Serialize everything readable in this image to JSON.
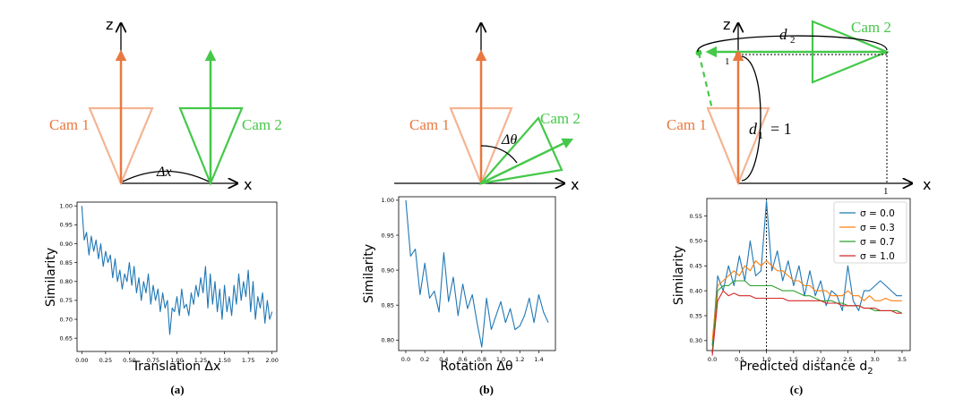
{
  "colors": {
    "cam1": "#E9783F",
    "cam1_light": "#F4B493",
    "cam2": "#45C84A",
    "series": "#1F77B4",
    "s00": "#1F77B4",
    "s03": "#FF7F0E",
    "s07": "#2CA02C",
    "s10": "#D62728"
  },
  "diagrams": {
    "a": {
      "z": "z",
      "x": "x",
      "cam1": "Cam 1",
      "cam2": "Cam 2",
      "delta": "Δx"
    },
    "b": {
      "x": "x",
      "cam1": "Cam 1",
      "cam2": "Cam 2",
      "delta": "Δθ"
    },
    "c": {
      "x": "x",
      "z": "z",
      "cam1": "Cam 1",
      "cam2": "Cam 2",
      "d2": "d",
      "d2_sub": "2",
      "d1": "d",
      "d1_sub": "1",
      "d1_eq": "= 1",
      "tick_top": "1",
      "tick_x": "1"
    }
  },
  "panel_labels": [
    "(a)",
    "(b)",
    "(c)"
  ],
  "chart_data": [
    {
      "type": "line",
      "title": "",
      "xlabel": "Translation Δx",
      "ylabel": "Similarity",
      "xlim": [
        -0.05,
        2.05
      ],
      "ylim": [
        0.615,
        1.01
      ],
      "xticks": [
        0.0,
        0.25,
        0.5,
        0.75,
        1.0,
        1.25,
        1.5,
        1.75,
        2.0
      ],
      "xtick_labels": [
        "0.00",
        "0.25",
        "0.50",
        "0.75",
        "1.00",
        "1.25",
        "1.50",
        "1.75",
        "2.00"
      ],
      "yticks": [
        0.65,
        0.7,
        0.75,
        0.8,
        0.85,
        0.9,
        0.95,
        1.0
      ],
      "ytick_labels": [
        "0.65",
        "0.70",
        "0.75",
        "0.80",
        "0.85",
        "0.90",
        "0.95",
        "1.00"
      ],
      "series": [
        {
          "name": "similarity",
          "x": [
            0.0,
            0.025,
            0.05,
            0.075,
            0.1,
            0.125,
            0.15,
            0.175,
            0.2,
            0.225,
            0.25,
            0.275,
            0.3,
            0.325,
            0.35,
            0.375,
            0.4,
            0.425,
            0.45,
            0.475,
            0.5,
            0.525,
            0.55,
            0.575,
            0.6,
            0.625,
            0.65,
            0.675,
            0.7,
            0.725,
            0.75,
            0.775,
            0.8,
            0.825,
            0.85,
            0.875,
            0.9,
            0.925,
            0.95,
            0.975,
            1.0,
            1.025,
            1.05,
            1.075,
            1.1,
            1.125,
            1.15,
            1.175,
            1.2,
            1.225,
            1.25,
            1.275,
            1.3,
            1.325,
            1.35,
            1.375,
            1.4,
            1.425,
            1.45,
            1.475,
            1.5,
            1.525,
            1.55,
            1.575,
            1.6,
            1.625,
            1.65,
            1.675,
            1.7,
            1.725,
            1.75,
            1.775,
            1.8,
            1.825,
            1.85,
            1.875,
            1.9,
            1.925,
            1.95,
            1.975,
            2.0
          ],
          "values": [
            1.0,
            0.91,
            0.93,
            0.87,
            0.92,
            0.88,
            0.91,
            0.86,
            0.9,
            0.84,
            0.88,
            0.85,
            0.87,
            0.81,
            0.86,
            0.8,
            0.83,
            0.78,
            0.82,
            0.8,
            0.85,
            0.79,
            0.84,
            0.77,
            0.81,
            0.75,
            0.8,
            0.77,
            0.82,
            0.74,
            0.79,
            0.75,
            0.78,
            0.72,
            0.77,
            0.73,
            0.75,
            0.66,
            0.73,
            0.72,
            0.76,
            0.71,
            0.78,
            0.73,
            0.74,
            0.71,
            0.77,
            0.74,
            0.79,
            0.76,
            0.81,
            0.77,
            0.84,
            0.73,
            0.82,
            0.74,
            0.8,
            0.72,
            0.78,
            0.7,
            0.79,
            0.72,
            0.76,
            0.71,
            0.79,
            0.74,
            0.82,
            0.75,
            0.8,
            0.76,
            0.83,
            0.72,
            0.8,
            0.7,
            0.76,
            0.73,
            0.77,
            0.69,
            0.75,
            0.7,
            0.72
          ]
        }
      ]
    },
    {
      "type": "line",
      "title": "",
      "xlabel": "Rotation Δθ",
      "ylabel": "Similarity",
      "xlim": [
        -0.075,
        1.575
      ],
      "ylim": [
        0.785,
        1.005
      ],
      "xticks": [
        0.0,
        0.2,
        0.4,
        0.6,
        0.8,
        1.0,
        1.2,
        1.4
      ],
      "xtick_labels": [
        "0.0",
        "0.2",
        "0.4",
        "0.6",
        "0.8",
        "1.0",
        "1.2",
        "1.4"
      ],
      "yticks": [
        0.8,
        0.85,
        0.9,
        0.95,
        1.0
      ],
      "ytick_labels": [
        "0.80",
        "0.85",
        "0.90",
        "0.95",
        "1.00"
      ],
      "series": [
        {
          "name": "similarity",
          "x": [
            0.0,
            0.05,
            0.1,
            0.15,
            0.2,
            0.25,
            0.3,
            0.35,
            0.4,
            0.45,
            0.5,
            0.55,
            0.6,
            0.65,
            0.7,
            0.75,
            0.8,
            0.85,
            0.9,
            0.95,
            1.0,
            1.05,
            1.1,
            1.15,
            1.2,
            1.25,
            1.3,
            1.35,
            1.4,
            1.45,
            1.5
          ],
          "values": [
            1.0,
            0.92,
            0.93,
            0.865,
            0.91,
            0.86,
            0.87,
            0.84,
            0.925,
            0.855,
            0.89,
            0.835,
            0.88,
            0.845,
            0.865,
            0.825,
            0.79,
            0.86,
            0.815,
            0.835,
            0.855,
            0.825,
            0.845,
            0.815,
            0.82,
            0.835,
            0.86,
            0.825,
            0.865,
            0.84,
            0.825
          ]
        }
      ]
    },
    {
      "type": "line",
      "title": "",
      "xlabel": "Predicted distance d",
      "xlabel_sub": "2",
      "ylabel": "Similarity",
      "xlim": [
        -0.1,
        3.65
      ],
      "ylim": [
        0.28,
        0.585
      ],
      "xticks": [
        0.0,
        0.5,
        1.0,
        1.5,
        2.0,
        2.5,
        3.0,
        3.5
      ],
      "xtick_labels": [
        "0.0",
        "0.5",
        "1.0",
        "1.5",
        "2.0",
        "2.5",
        "3.0",
        "3.5"
      ],
      "yticks": [
        0.3,
        0.35,
        0.4,
        0.45,
        0.5,
        0.55
      ],
      "ytick_labels": [
        "0.30",
        "0.35",
        "0.40",
        "0.45",
        "0.50",
        "0.55"
      ],
      "vline_x": 1.0,
      "legend_placement": "top-right",
      "series": [
        {
          "name": "σ = 0.0",
          "legend_label": "σ = 0.0",
          "x": [
            0.0,
            0.1,
            0.2,
            0.3,
            0.4,
            0.5,
            0.6,
            0.7,
            0.8,
            0.9,
            1.0,
            1.1,
            1.2,
            1.3,
            1.4,
            1.5,
            1.6,
            1.7,
            1.8,
            1.9,
            2.0,
            2.1,
            2.2,
            2.3,
            2.4,
            2.5,
            2.6,
            2.7,
            2.8,
            2.9,
            3.0,
            3.1,
            3.2,
            3.3,
            3.4,
            3.5
          ],
          "values": [
            0.29,
            0.43,
            0.4,
            0.45,
            0.41,
            0.47,
            0.42,
            0.5,
            0.43,
            0.44,
            0.58,
            0.44,
            0.48,
            0.42,
            0.46,
            0.41,
            0.45,
            0.39,
            0.44,
            0.39,
            0.42,
            0.37,
            0.4,
            0.39,
            0.36,
            0.45,
            0.38,
            0.36,
            0.4,
            0.4,
            0.41,
            0.42,
            0.41,
            0.4,
            0.39,
            0.39
          ]
        },
        {
          "name": "σ = 0.3",
          "legend_label": "σ = 0.3",
          "x": [
            0.0,
            0.1,
            0.2,
            0.3,
            0.4,
            0.5,
            0.6,
            0.7,
            0.8,
            0.9,
            1.0,
            1.1,
            1.2,
            1.3,
            1.4,
            1.5,
            1.6,
            1.7,
            1.8,
            1.9,
            2.0,
            2.1,
            2.2,
            2.3,
            2.4,
            2.5,
            2.6,
            2.7,
            2.8,
            2.9,
            3.0,
            3.1,
            3.2,
            3.3,
            3.4,
            3.5
          ],
          "values": [
            0.3,
            0.41,
            0.42,
            0.43,
            0.44,
            0.43,
            0.45,
            0.44,
            0.46,
            0.45,
            0.46,
            0.45,
            0.44,
            0.44,
            0.43,
            0.42,
            0.42,
            0.41,
            0.41,
            0.4,
            0.4,
            0.4,
            0.39,
            0.39,
            0.39,
            0.4,
            0.39,
            0.39,
            0.38,
            0.39,
            0.38,
            0.38,
            0.385,
            0.38,
            0.38,
            0.38
          ]
        },
        {
          "name": "σ = 0.7",
          "legend_label": "σ = 0.7",
          "x": [
            0.0,
            0.1,
            0.2,
            0.3,
            0.4,
            0.5,
            0.6,
            0.7,
            0.8,
            0.9,
            1.0,
            1.1,
            1.2,
            1.3,
            1.4,
            1.5,
            1.6,
            1.7,
            1.8,
            1.9,
            2.0,
            2.1,
            2.2,
            2.3,
            2.4,
            2.5,
            2.6,
            2.7,
            2.8,
            2.9,
            3.0,
            3.1,
            3.2,
            3.3,
            3.4,
            3.5
          ],
          "values": [
            0.28,
            0.4,
            0.41,
            0.41,
            0.42,
            0.42,
            0.42,
            0.41,
            0.41,
            0.41,
            0.41,
            0.41,
            0.405,
            0.4,
            0.4,
            0.4,
            0.395,
            0.39,
            0.39,
            0.385,
            0.38,
            0.38,
            0.38,
            0.375,
            0.375,
            0.37,
            0.37,
            0.37,
            0.365,
            0.365,
            0.36,
            0.36,
            0.36,
            0.36,
            0.36,
            0.355
          ]
        },
        {
          "name": "σ = 1.0",
          "legend_label": "σ = 1.0",
          "x": [
            0.0,
            0.1,
            0.2,
            0.3,
            0.4,
            0.5,
            0.6,
            0.7,
            0.8,
            0.9,
            1.0,
            1.1,
            1.2,
            1.3,
            1.4,
            1.5,
            1.6,
            1.7,
            1.8,
            1.9,
            2.0,
            2.1,
            2.2,
            2.3,
            2.4,
            2.5,
            2.6,
            2.7,
            2.8,
            2.9,
            3.0,
            3.1,
            3.2,
            3.3,
            3.4,
            3.5
          ],
          "values": [
            0.27,
            0.38,
            0.4,
            0.39,
            0.395,
            0.39,
            0.39,
            0.39,
            0.385,
            0.385,
            0.385,
            0.385,
            0.385,
            0.385,
            0.38,
            0.38,
            0.38,
            0.38,
            0.38,
            0.38,
            0.38,
            0.375,
            0.375,
            0.375,
            0.37,
            0.37,
            0.37,
            0.37,
            0.365,
            0.365,
            0.365,
            0.36,
            0.36,
            0.36,
            0.355,
            0.355
          ]
        }
      ]
    }
  ]
}
